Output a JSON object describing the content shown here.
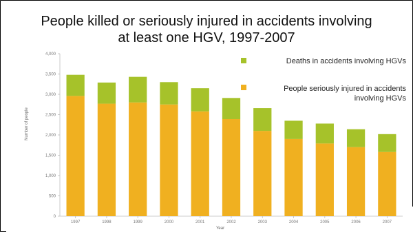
{
  "chart_data": {
    "type": "bar",
    "stacked": true,
    "title_lines": [
      "People killed or seriously injured in accidents involving",
      "at least one HGV, 1997-2007"
    ],
    "xlabel": "Year",
    "ylabel": "Number of people",
    "categories": [
      "1997",
      "1998",
      "1999",
      "2000",
      "2001",
      "2002",
      "2003",
      "2004",
      "2005",
      "2006",
      "2007"
    ],
    "ylim": [
      0,
      4000
    ],
    "yticks": [
      "0",
      "500",
      "1,000",
      "1,500",
      "2,000",
      "2,500",
      "3,000",
      "3,500",
      "4,000"
    ],
    "grid": false,
    "legend_position": "top-right",
    "series": [
      {
        "name": "People seriously injured in accidents involving HGVs",
        "legend_lines": [
          "People seriously injured in accidents",
          "involving HGVs"
        ],
        "color": "#f0b020",
        "values": [
          2960,
          2770,
          2800,
          2750,
          2580,
          2390,
          2100,
          1900,
          1790,
          1700,
          1580
        ]
      },
      {
        "name": "Deaths in accidents involving HGVs",
        "legend_lines": [
          "Deaths in accidents involving HGVs"
        ],
        "color": "#a6c22a",
        "values": [
          520,
          520,
          630,
          550,
          570,
          520,
          560,
          450,
          490,
          440,
          440
        ]
      }
    ]
  }
}
